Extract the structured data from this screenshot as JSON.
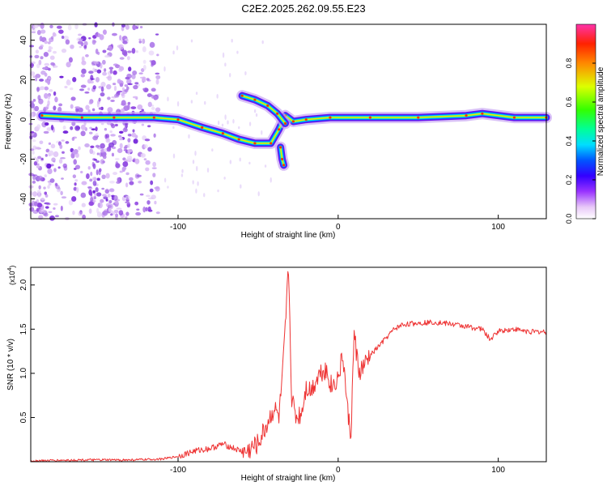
{
  "title": "C2E2.2025.262.09.55.E23",
  "chart_data": [
    {
      "type": "heatmap",
      "xlabel": "Height of straight line (km)",
      "ylabel": "Frequency (Hz)",
      "xlim": [
        -192,
        130
      ],
      "ylim": [
        -50,
        48
      ],
      "xticks": [
        -100,
        0,
        100
      ],
      "yticks": [
        -40,
        -20,
        0,
        20,
        40
      ],
      "colorbar": {
        "label": "Normalized spectral amplitude",
        "ticks": [
          "0.0",
          "0.2",
          "0.4",
          "0.6",
          "0.8"
        ],
        "tick_values": [
          0.0,
          0.2,
          0.4,
          0.6,
          0.8
        ],
        "range": [
          0,
          1
        ]
      },
      "ridge": [
        {
          "x": -185,
          "y": 2
        },
        {
          "x": -160,
          "y": 1
        },
        {
          "x": -140,
          "y": 1
        },
        {
          "x": -115,
          "y": 1
        },
        {
          "x": -100,
          "y": 0
        },
        {
          "x": -85,
          "y": -4
        },
        {
          "x": -72,
          "y": -7
        },
        {
          "x": -62,
          "y": -10
        },
        {
          "x": -52,
          "y": -12
        },
        {
          "x": -42,
          "y": -12
        },
        {
          "x": -37,
          "y": -5
        },
        {
          "x": -33,
          "y": 2
        },
        {
          "x": -28,
          "y": -1
        },
        {
          "x": -20,
          "y": 0
        },
        {
          "x": -5,
          "y": 1
        },
        {
          "x": 20,
          "y": 1
        },
        {
          "x": 50,
          "y": 1
        },
        {
          "x": 80,
          "y": 2
        },
        {
          "x": 90,
          "y": 3
        },
        {
          "x": 110,
          "y": 1
        },
        {
          "x": 130,
          "y": 1
        }
      ],
      "branch": [
        {
          "x": -60,
          "y": 12
        },
        {
          "x": -52,
          "y": 10
        },
        {
          "x": -44,
          "y": 7
        },
        {
          "x": -38,
          "y": 3
        },
        {
          "x": -33,
          "y": -2
        }
      ],
      "tail": [
        {
          "x": -36,
          "y": -14
        },
        {
          "x": -35,
          "y": -20
        },
        {
          "x": -34,
          "y": -23
        }
      ]
    },
    {
      "type": "line",
      "xlabel": "Height of straight line (km)",
      "ylabel": "SNR (10 * v/v)",
      "yscale_label": "(x10",
      "yscale_exp": "4",
      "yscale_close": ")",
      "xlim": [
        -192,
        130
      ],
      "ylim": [
        0,
        2.2
      ],
      "xticks": [
        -100,
        0,
        100
      ],
      "yticks": [
        0.5,
        1.0,
        1.5,
        2.0
      ],
      "ytick_labels": [
        "0.5",
        "1.0",
        "1.5",
        "2.0"
      ],
      "color": "#ee3333",
      "series": [
        {
          "name": "SNR",
          "points": [
            {
              "x": -192,
              "y": 0.01
            },
            {
              "x": -160,
              "y": 0.02
            },
            {
              "x": -130,
              "y": 0.02
            },
            {
              "x": -110,
              "y": 0.03
            },
            {
              "x": -100,
              "y": 0.06
            },
            {
              "x": -90,
              "y": 0.12
            },
            {
              "x": -80,
              "y": 0.15
            },
            {
              "x": -72,
              "y": 0.2
            },
            {
              "x": -65,
              "y": 0.15
            },
            {
              "x": -58,
              "y": 0.1
            },
            {
              "x": -50,
              "y": 0.2
            },
            {
              "x": -45,
              "y": 0.4
            },
            {
              "x": -40,
              "y": 0.6
            },
            {
              "x": -37,
              "y": 0.5
            },
            {
              "x": -35,
              "y": 0.9
            },
            {
              "x": -33,
              "y": 1.5
            },
            {
              "x": -31,
              "y": 2.2
            },
            {
              "x": -29,
              "y": 0.7
            },
            {
              "x": -26,
              "y": 0.5
            },
            {
              "x": -23,
              "y": 0.55
            },
            {
              "x": -20,
              "y": 0.85
            },
            {
              "x": -17,
              "y": 0.8
            },
            {
              "x": -12,
              "y": 1.0
            },
            {
              "x": -8,
              "y": 1.05
            },
            {
              "x": -4,
              "y": 0.85
            },
            {
              "x": 0,
              "y": 0.95
            },
            {
              "x": 3,
              "y": 1.2
            },
            {
              "x": 6,
              "y": 0.55
            },
            {
              "x": 8,
              "y": 0.3
            },
            {
              "x": 10,
              "y": 1.45
            },
            {
              "x": 13,
              "y": 1.0
            },
            {
              "x": 17,
              "y": 1.1
            },
            {
              "x": 20,
              "y": 1.2
            },
            {
              "x": 25,
              "y": 1.3
            },
            {
              "x": 30,
              "y": 1.4
            },
            {
              "x": 35,
              "y": 1.5
            },
            {
              "x": 40,
              "y": 1.55
            },
            {
              "x": 50,
              "y": 1.57
            },
            {
              "x": 60,
              "y": 1.58
            },
            {
              "x": 70,
              "y": 1.56
            },
            {
              "x": 80,
              "y": 1.53
            },
            {
              "x": 90,
              "y": 1.5
            },
            {
              "x": 95,
              "y": 1.38
            },
            {
              "x": 100,
              "y": 1.48
            },
            {
              "x": 110,
              "y": 1.5
            },
            {
              "x": 120,
              "y": 1.47
            },
            {
              "x": 130,
              "y": 1.47
            }
          ]
        }
      ]
    }
  ]
}
